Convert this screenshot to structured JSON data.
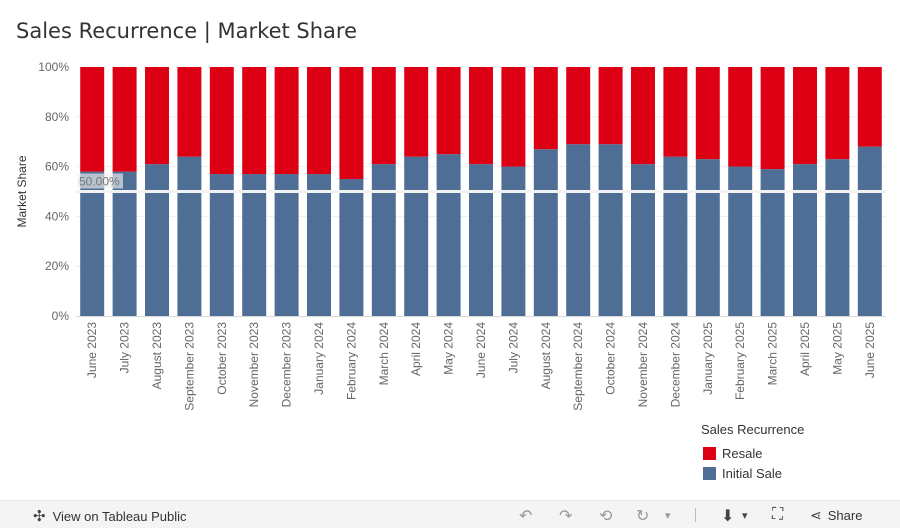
{
  "title": "Sales Recurrence | Market Share",
  "chart_data": {
    "type": "bar",
    "stacked": true,
    "categories": [
      "June 2023",
      "July 2023",
      "August 2023",
      "September 2023",
      "October 2023",
      "November 2023",
      "December 2023",
      "January 2024",
      "February 2024",
      "March 2024",
      "April 2024",
      "May 2024",
      "June 2024",
      "July 2024",
      "August 2024",
      "September 2024",
      "October 2024",
      "November 2024",
      "December 2024",
      "January 2025",
      "February 2025",
      "March 2025",
      "April 2025",
      "May 2025",
      "June 2025"
    ],
    "series": [
      {
        "name": "Initial Sale",
        "color": "#4e6e96",
        "values": [
          58,
          58,
          61,
          64,
          57,
          57,
          57,
          57,
          55,
          61,
          64,
          65,
          61,
          60,
          67,
          69,
          69,
          61,
          64,
          63,
          60,
          59,
          61,
          63,
          68
        ]
      },
      {
        "name": "Resale",
        "color": "#dd0014",
        "values": [
          42,
          42,
          39,
          36,
          43,
          43,
          43,
          43,
          45,
          39,
          36,
          35,
          39,
          40,
          33,
          31,
          31,
          39,
          36,
          37,
          40,
          41,
          39,
          37,
          32
        ]
      }
    ],
    "ylabel": "Market Share",
    "ylim": [
      0,
      100
    ],
    "yticks": [
      "0%",
      "20%",
      "40%",
      "60%",
      "80%",
      "100%"
    ],
    "reference_line": {
      "value": 50,
      "label": "50.00%"
    },
    "legend": {
      "title": "Sales Recurrence",
      "position": "bottom-right",
      "order": [
        "Resale",
        "Initial Sale"
      ]
    }
  },
  "footer": {
    "view_label": "View on Tableau Public",
    "share_label": "Share"
  }
}
